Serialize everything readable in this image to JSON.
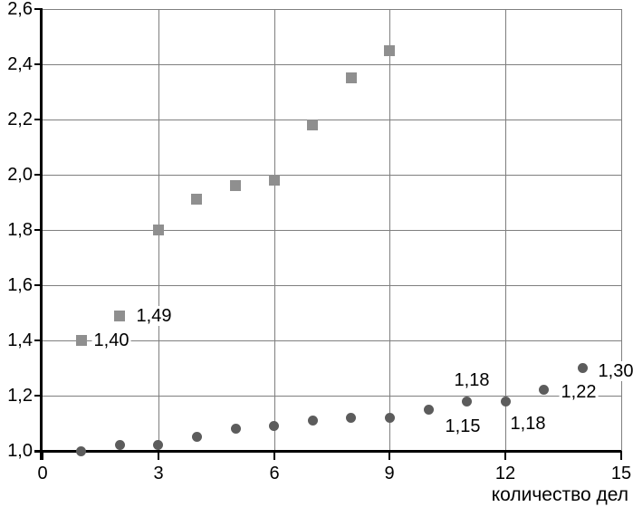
{
  "chart_data": {
    "type": "scatter",
    "title": "",
    "xlabel": "количество дел",
    "ylabel": "",
    "xlim": [
      0,
      15
    ],
    "ylim": [
      1.0,
      2.6
    ],
    "grid": true,
    "legend": "none",
    "decimal_separator": ",",
    "x_ticks": [
      {
        "v": 0,
        "label": "0"
      },
      {
        "v": 3,
        "label": "3"
      },
      {
        "v": 6,
        "label": "6"
      },
      {
        "v": 9,
        "label": "9"
      },
      {
        "v": 12,
        "label": "12"
      },
      {
        "v": 15,
        "label": "15"
      }
    ],
    "y_ticks": [
      {
        "v": 1.0,
        "label": "1,0"
      },
      {
        "v": 1.2,
        "label": "1,2"
      },
      {
        "v": 1.4,
        "label": "1,4"
      },
      {
        "v": 1.6,
        "label": "1,6"
      },
      {
        "v": 1.8,
        "label": "1,8"
      },
      {
        "v": 2.0,
        "label": "2,0"
      },
      {
        "v": 2.2,
        "label": "2,2"
      },
      {
        "v": 2.4,
        "label": "2,4"
      },
      {
        "v": 2.6,
        "label": "2,6"
      }
    ],
    "series": [
      {
        "name": "upper-series-squares",
        "marker": "square",
        "color": "#8f8f8f",
        "points": [
          {
            "x": 1,
            "y": 1.4,
            "label": "1,40",
            "ldx": 33,
            "ldy": 0
          },
          {
            "x": 2,
            "y": 1.49,
            "label": "1,49",
            "ldx": 38,
            "ldy": 0
          },
          {
            "x": 3,
            "y": 1.8
          },
          {
            "x": 4,
            "y": 1.91
          },
          {
            "x": 5,
            "y": 1.96
          },
          {
            "x": 6,
            "y": 1.98
          },
          {
            "x": 7,
            "y": 2.18
          },
          {
            "x": 8,
            "y": 2.35
          },
          {
            "x": 9,
            "y": 2.45
          }
        ]
      },
      {
        "name": "lower-series-circles",
        "marker": "circle",
        "color": "#5c5c5c",
        "points": [
          {
            "x": 1,
            "y": 1.0
          },
          {
            "x": 2,
            "y": 1.02
          },
          {
            "x": 3,
            "y": 1.02
          },
          {
            "x": 4,
            "y": 1.05
          },
          {
            "x": 5,
            "y": 1.08
          },
          {
            "x": 6,
            "y": 1.09
          },
          {
            "x": 7,
            "y": 1.11
          },
          {
            "x": 8,
            "y": 1.12
          },
          {
            "x": 9,
            "y": 1.12
          },
          {
            "x": 10,
            "y": 1.15,
            "label": "1,15",
            "ldx": 38,
            "ldy": 19
          },
          {
            "x": 11,
            "y": 1.18,
            "label": "1,18",
            "ldx": 5,
            "ldy": -23
          },
          {
            "x": 12,
            "y": 1.18,
            "label": "1,18",
            "ldx": 25,
            "ldy": 25
          },
          {
            "x": 13,
            "y": 1.22,
            "label": "1,22",
            "ldx": 38,
            "ldy": 2
          },
          {
            "x": 14,
            "y": 1.3,
            "label": "1,30",
            "ldx": 37,
            "ldy": 3
          }
        ]
      }
    ],
    "colors": {
      "background": "#ffffff",
      "grid": "#7f7f7f",
      "axis": "#000000",
      "text": "#000000",
      "square_marker": "#8f8f8f",
      "circle_marker": "#5c5c5c"
    }
  }
}
